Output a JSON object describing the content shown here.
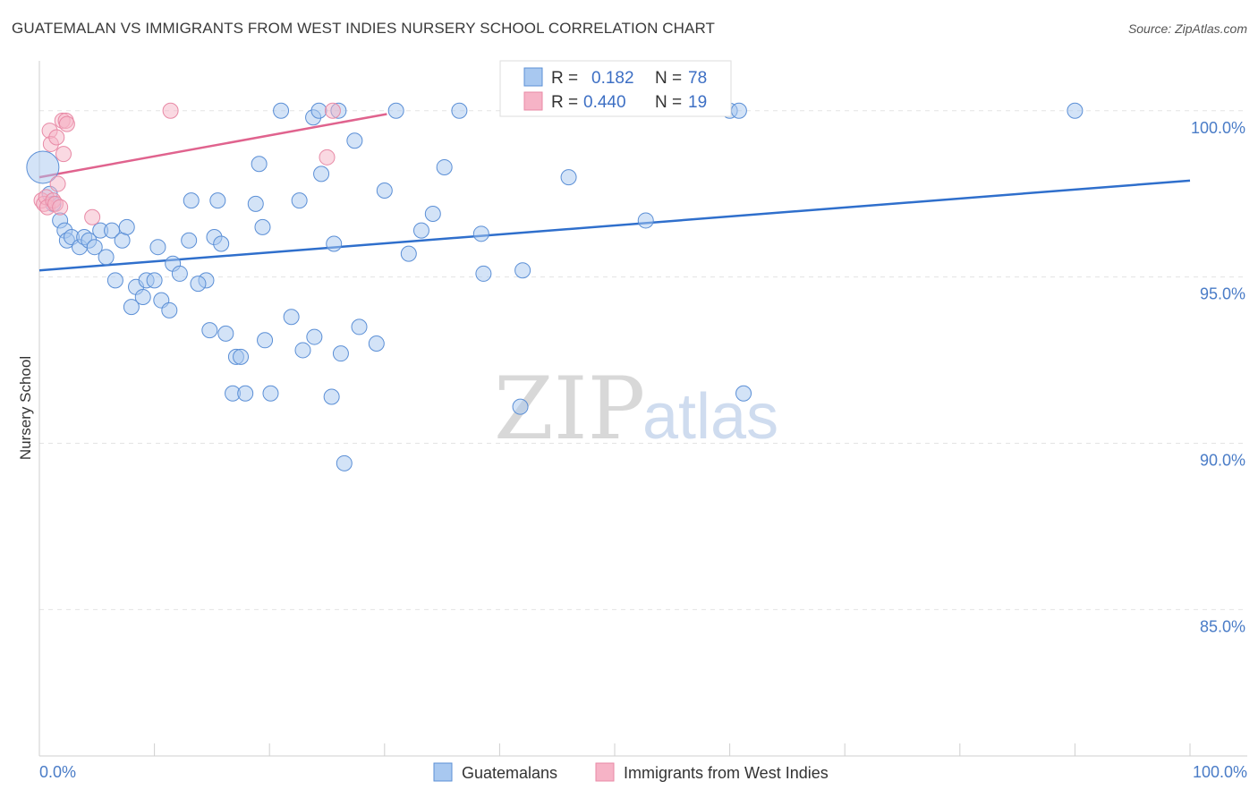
{
  "header": {
    "title": "GUATEMALAN VS IMMIGRANTS FROM WEST INDIES NURSERY SCHOOL CORRELATION CHART",
    "source": "Source: ZipAtlas.com"
  },
  "watermark": {
    "zip": "ZIP",
    "atlas": "atlas"
  },
  "colors": {
    "blue_fill": "#a8c8f0",
    "blue_stroke": "#5b8fd6",
    "blue_line": "#2f6fcc",
    "pink_fill": "#f6b3c6",
    "pink_stroke": "#e88aa6",
    "pink_line": "#e0638e",
    "grid": "#e3e3e3",
    "tick_text": "#4a7cc7"
  },
  "legend": {
    "rows": [
      {
        "r_label": "R =",
        "r_value": "0.182",
        "n_label": "N =",
        "n_value": "78"
      },
      {
        "r_label": "R =",
        "r_value": "0.440",
        "n_label": "N =",
        "n_value": "19"
      }
    ]
  },
  "chart_data": {
    "type": "scatter",
    "title": "GUATEMALAN VS IMMIGRANTS FROM WEST INDIES NURSERY SCHOOL CORRELATION CHART",
    "xlabel": "",
    "ylabel": "Nursery School",
    "xlim": [
      0,
      100
    ],
    "ylim": [
      80.6,
      101.5
    ],
    "x_tick_labels": [
      "0.0%",
      "100.0%"
    ],
    "y_ticks": [
      100,
      95,
      90,
      85
    ],
    "y_tick_labels": [
      "100.0%",
      "95.0%",
      "90.0%",
      "85.0%"
    ],
    "grid": true,
    "legend_position": "bottom-center",
    "series": [
      {
        "name": "Guatemalans",
        "color": "#a8c8f0",
        "trend": {
          "x": [
            0,
            100
          ],
          "y": [
            95.2,
            97.9
          ]
        },
        "points": [
          {
            "x": 0.3,
            "y": 98.3,
            "big": true
          },
          {
            "x": 0.9,
            "y": 97.5
          },
          {
            "x": 1.2,
            "y": 97.2
          },
          {
            "x": 1.8,
            "y": 96.7
          },
          {
            "x": 2.2,
            "y": 96.4
          },
          {
            "x": 2.4,
            "y": 96.1
          },
          {
            "x": 2.8,
            "y": 96.2
          },
          {
            "x": 3.5,
            "y": 95.9
          },
          {
            "x": 3.9,
            "y": 96.2
          },
          {
            "x": 4.3,
            "y": 96.1
          },
          {
            "x": 4.8,
            "y": 95.9
          },
          {
            "x": 5.8,
            "y": 95.6
          },
          {
            "x": 5.3,
            "y": 96.4
          },
          {
            "x": 6.3,
            "y": 96.4
          },
          {
            "x": 7.2,
            "y": 96.1
          },
          {
            "x": 7.6,
            "y": 96.5
          },
          {
            "x": 6.6,
            "y": 94.9
          },
          {
            "x": 8.0,
            "y": 94.1
          },
          {
            "x": 8.4,
            "y": 94.7
          },
          {
            "x": 9.0,
            "y": 94.4
          },
          {
            "x": 9.3,
            "y": 94.9
          },
          {
            "x": 10.0,
            "y": 94.9
          },
          {
            "x": 10.6,
            "y": 94.3
          },
          {
            "x": 11.3,
            "y": 94.0
          },
          {
            "x": 11.6,
            "y": 95.4
          },
          {
            "x": 12.2,
            "y": 95.1
          },
          {
            "x": 13.0,
            "y": 96.1
          },
          {
            "x": 13.2,
            "y": 97.3
          },
          {
            "x": 14.5,
            "y": 94.9
          },
          {
            "x": 13.8,
            "y": 94.8
          },
          {
            "x": 10.3,
            "y": 95.9
          },
          {
            "x": 14.8,
            "y": 93.4
          },
          {
            "x": 15.2,
            "y": 96.2
          },
          {
            "x": 15.5,
            "y": 97.3
          },
          {
            "x": 15.8,
            "y": 96.0
          },
          {
            "x": 16.2,
            "y": 93.3
          },
          {
            "x": 16.8,
            "y": 91.5
          },
          {
            "x": 17.1,
            "y": 92.6
          },
          {
            "x": 17.5,
            "y": 92.6
          },
          {
            "x": 17.9,
            "y": 91.5
          },
          {
            "x": 18.8,
            "y": 97.2
          },
          {
            "x": 19.1,
            "y": 98.4
          },
          {
            "x": 19.4,
            "y": 96.5
          },
          {
            "x": 19.6,
            "y": 93.1
          },
          {
            "x": 20.1,
            "y": 91.5
          },
          {
            "x": 21.0,
            "y": 100.0
          },
          {
            "x": 21.9,
            "y": 93.8
          },
          {
            "x": 22.6,
            "y": 97.3
          },
          {
            "x": 22.9,
            "y": 92.8
          },
          {
            "x": 23.8,
            "y": 99.8
          },
          {
            "x": 23.9,
            "y": 93.2
          },
          {
            "x": 24.3,
            "y": 100.0
          },
          {
            "x": 24.5,
            "y": 98.1
          },
          {
            "x": 25.4,
            "y": 91.4
          },
          {
            "x": 25.6,
            "y": 96.0
          },
          {
            "x": 26.0,
            "y": 100.0
          },
          {
            "x": 26.2,
            "y": 92.7
          },
          {
            "x": 27.4,
            "y": 99.1
          },
          {
            "x": 27.8,
            "y": 93.5
          },
          {
            "x": 29.3,
            "y": 93.0
          },
          {
            "x": 30.0,
            "y": 97.6
          },
          {
            "x": 31.0,
            "y": 100.0
          },
          {
            "x": 32.1,
            "y": 95.7
          },
          {
            "x": 33.2,
            "y": 96.4
          },
          {
            "x": 34.2,
            "y": 96.9
          },
          {
            "x": 35.2,
            "y": 98.3
          },
          {
            "x": 36.5,
            "y": 100.0
          },
          {
            "x": 38.4,
            "y": 96.3
          },
          {
            "x": 38.6,
            "y": 95.1
          },
          {
            "x": 41.8,
            "y": 91.1
          },
          {
            "x": 42.0,
            "y": 95.2
          },
          {
            "x": 46.0,
            "y": 98.0
          },
          {
            "x": 52.7,
            "y": 96.7
          },
          {
            "x": 60.0,
            "y": 100.0
          },
          {
            "x": 60.8,
            "y": 100.0
          },
          {
            "x": 61.2,
            "y": 91.5
          },
          {
            "x": 90.0,
            "y": 100.0
          },
          {
            "x": 26.5,
            "y": 89.4
          }
        ]
      },
      {
        "name": "Immigrants from West Indies",
        "color": "#f6b3c6",
        "trend": {
          "x": [
            0,
            30.2
          ],
          "y": [
            98.0,
            99.9
          ]
        },
        "points": [
          {
            "x": 0.2,
            "y": 97.3
          },
          {
            "x": 0.4,
            "y": 97.2
          },
          {
            "x": 0.6,
            "y": 97.4
          },
          {
            "x": 0.7,
            "y": 97.1
          },
          {
            "x": 0.9,
            "y": 99.4
          },
          {
            "x": 1.0,
            "y": 99.0
          },
          {
            "x": 1.2,
            "y": 97.3
          },
          {
            "x": 1.4,
            "y": 97.2
          },
          {
            "x": 1.5,
            "y": 99.2
          },
          {
            "x": 1.6,
            "y": 97.8
          },
          {
            "x": 1.8,
            "y": 97.1
          },
          {
            "x": 2.0,
            "y": 99.7
          },
          {
            "x": 2.1,
            "y": 98.7
          },
          {
            "x": 2.3,
            "y": 99.7
          },
          {
            "x": 2.4,
            "y": 99.6
          },
          {
            "x": 4.6,
            "y": 96.8
          },
          {
            "x": 11.4,
            "y": 100.0
          },
          {
            "x": 25.0,
            "y": 98.6
          },
          {
            "x": 25.5,
            "y": 100.0
          }
        ]
      }
    ]
  }
}
